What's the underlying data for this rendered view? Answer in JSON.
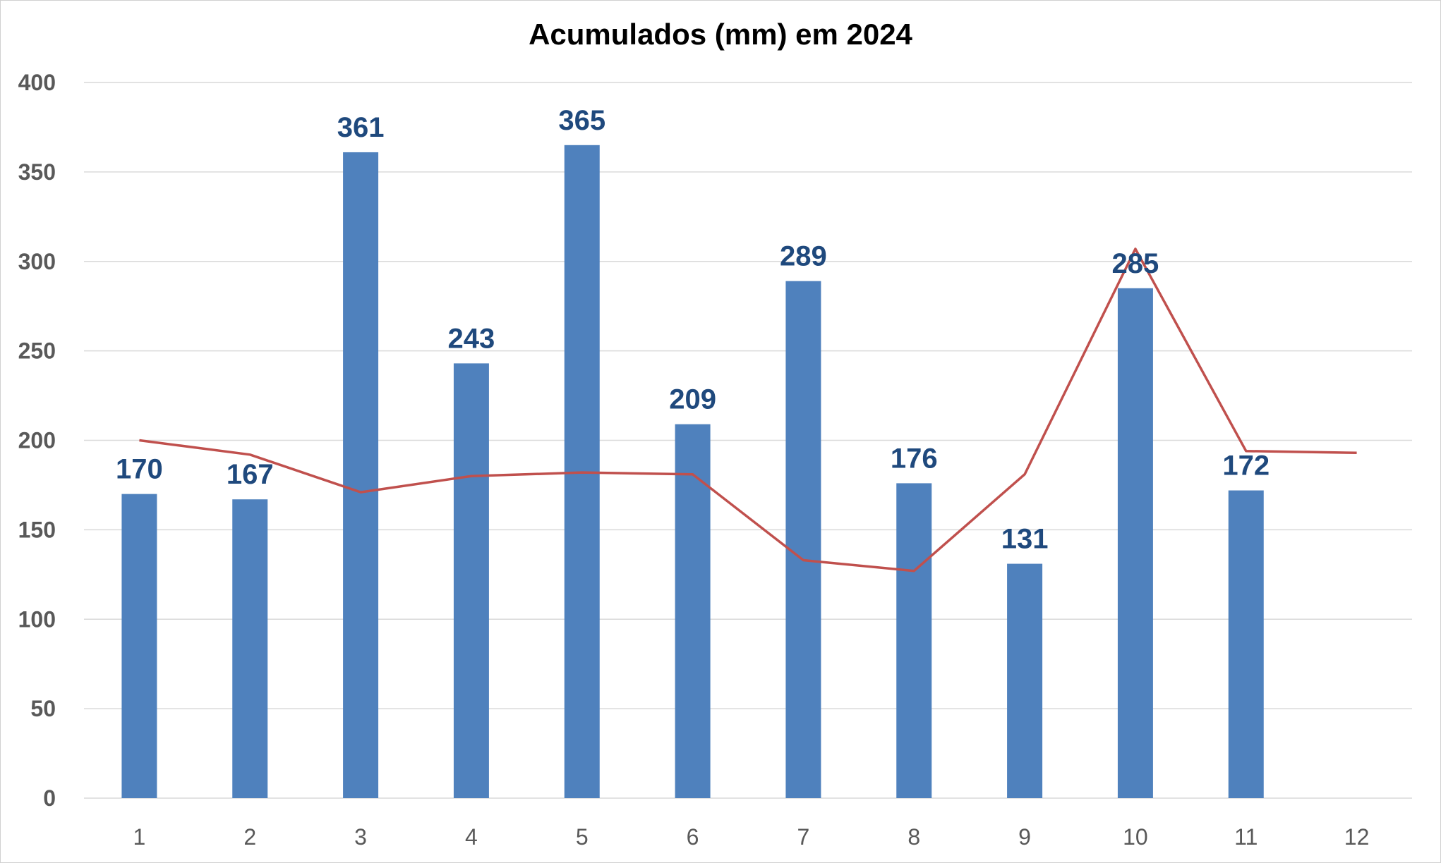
{
  "chart_data": {
    "type": "bar",
    "title": "Acumulados (mm) em 2024",
    "xlabel": "",
    "ylabel": "",
    "categories": [
      "1",
      "2",
      "3",
      "4",
      "5",
      "6",
      "7",
      "8",
      "9",
      "10",
      "11",
      "12"
    ],
    "series": [
      {
        "type": "bar",
        "values": [
          170,
          167,
          361,
          243,
          365,
          209,
          289,
          176,
          131,
          285,
          172,
          null
        ],
        "data_labels": [
          "170",
          "167",
          "361",
          "243",
          "365",
          "209",
          "289",
          "176",
          "131",
          "285",
          "172",
          ""
        ],
        "color": "#4f81bd"
      },
      {
        "type": "line",
        "values": [
          200,
          192,
          171,
          180,
          182,
          181,
          133,
          127,
          181,
          307,
          194,
          193
        ],
        "color": "#c0504d"
      }
    ],
    "ylim": [
      0,
      400
    ],
    "yticks": [
      "0",
      "50",
      "100",
      "150",
      "200",
      "250",
      "300",
      "350",
      "400"
    ],
    "grid": true,
    "legend": "none"
  }
}
